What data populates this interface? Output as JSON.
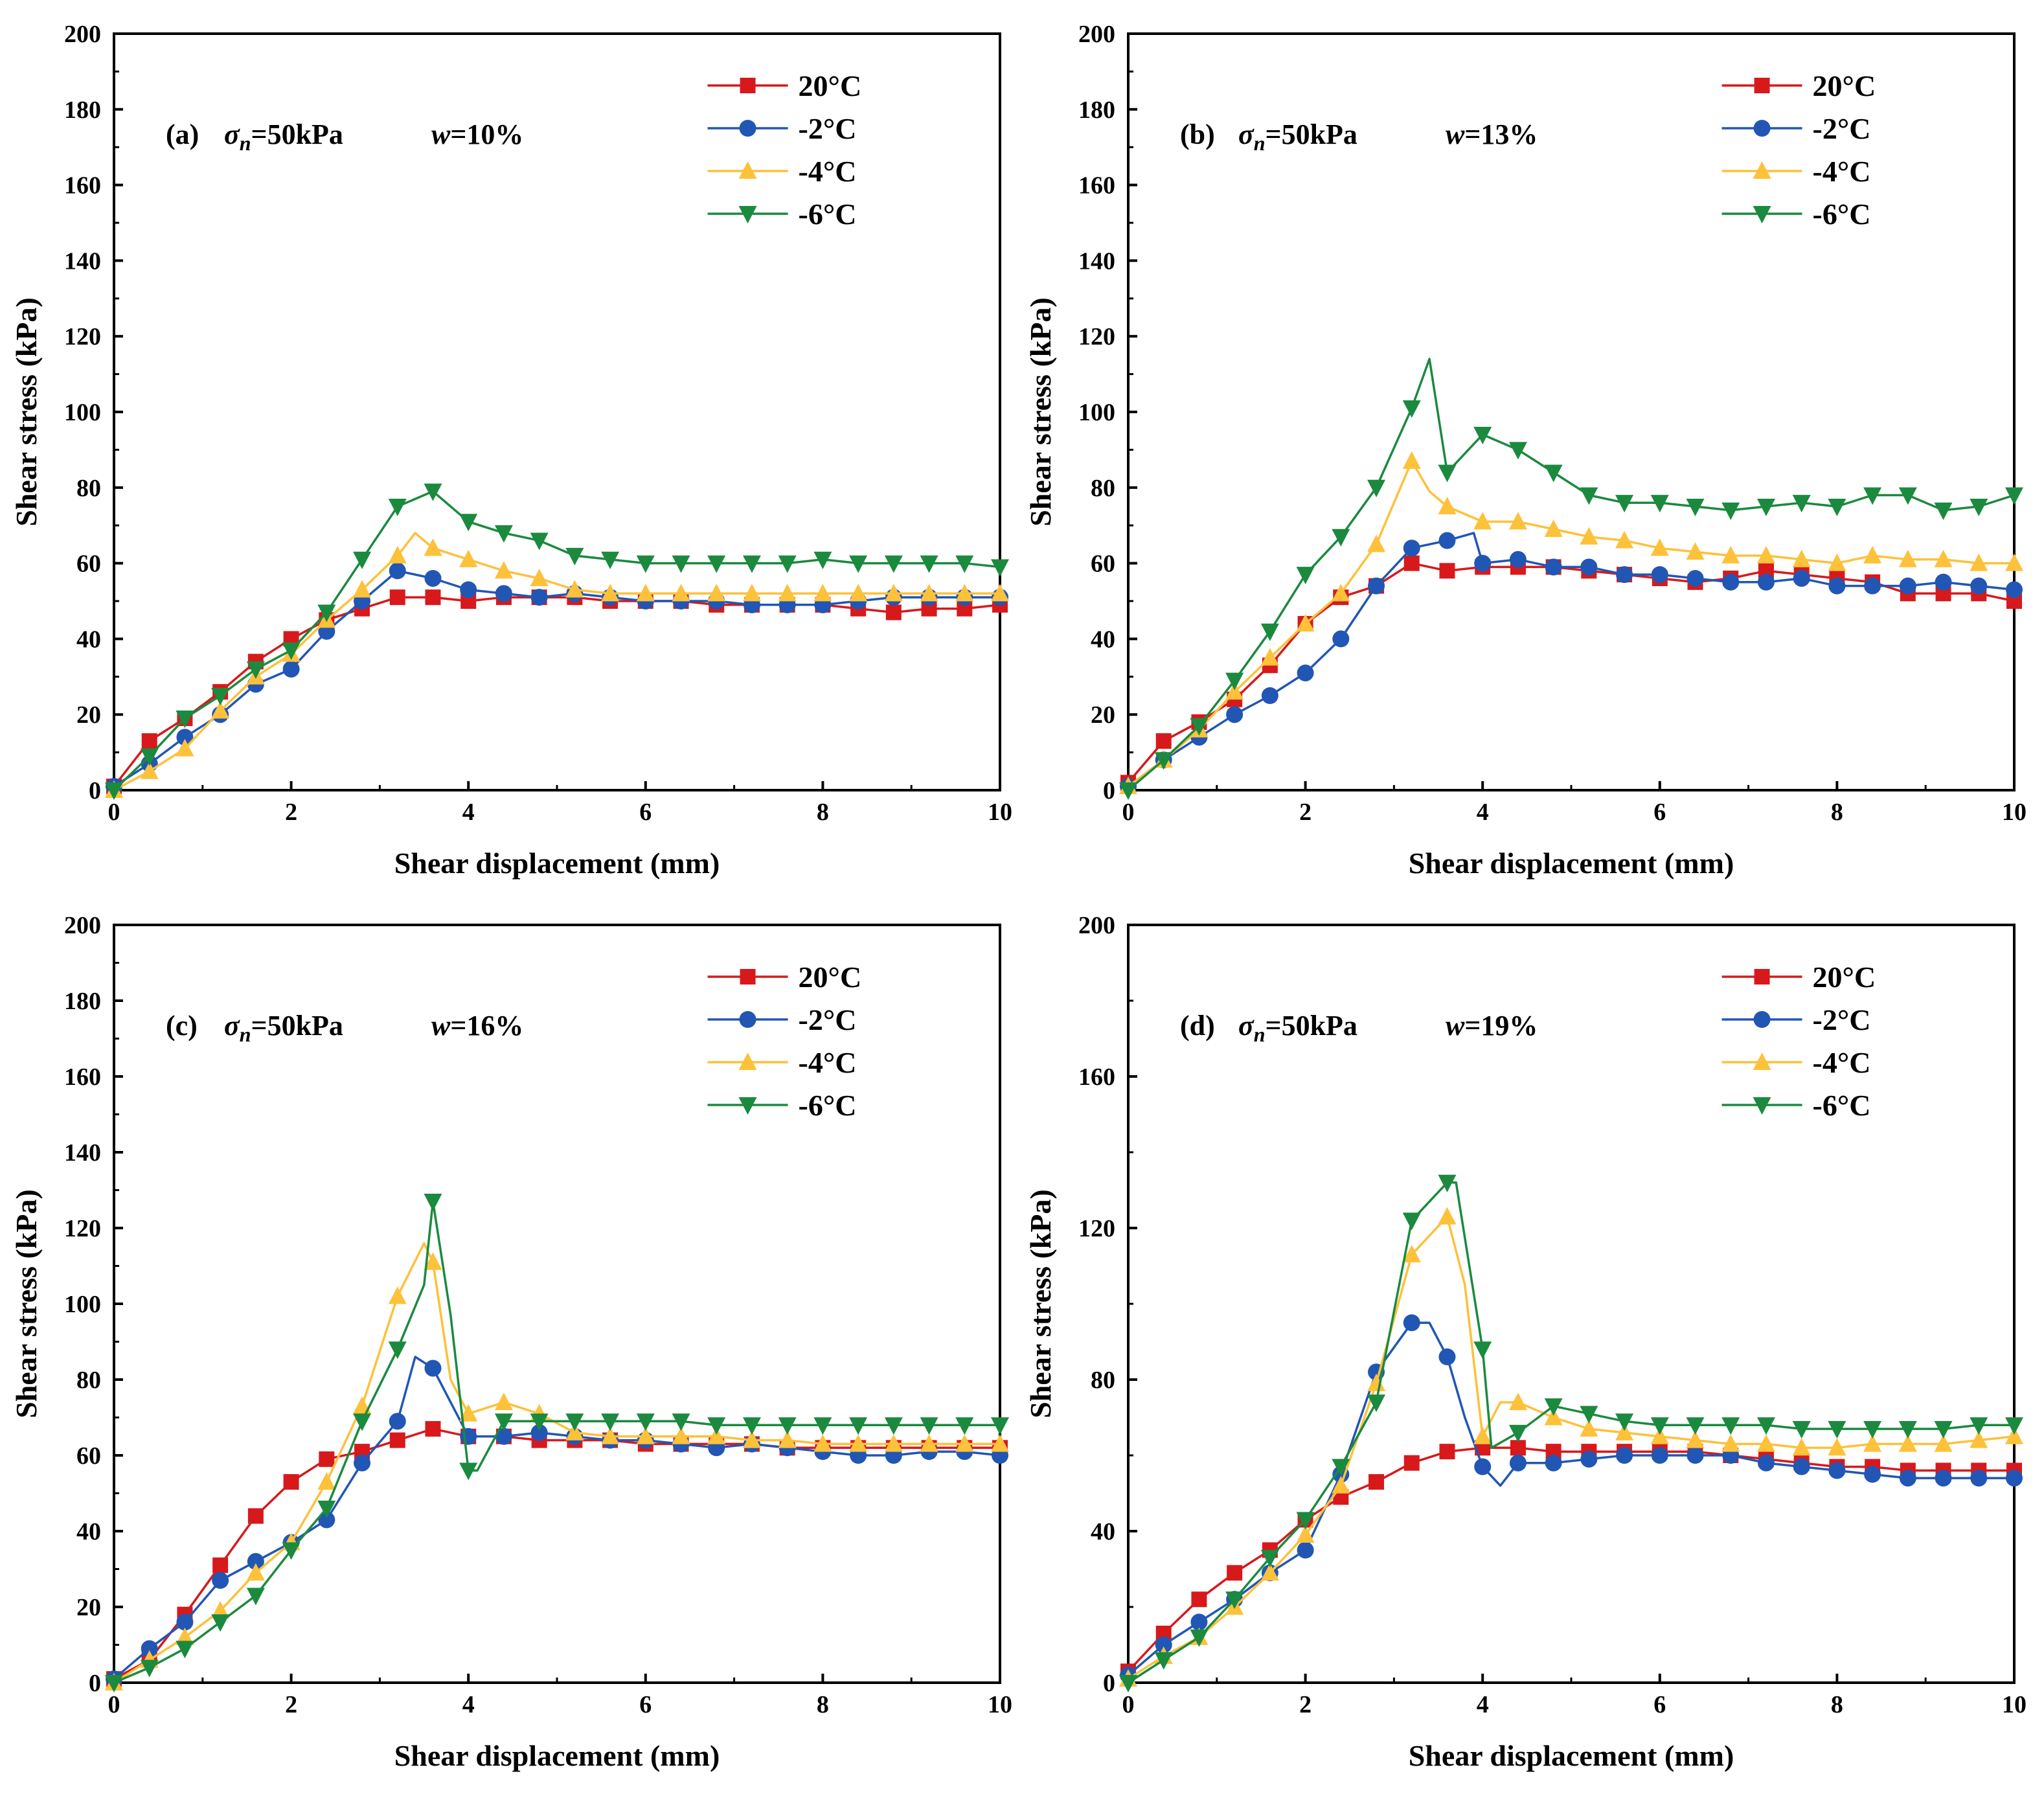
{
  "figure": {
    "panels": [
      {
        "label": "(a)",
        "sigma": "n",
        "sigma_rest": "=50kPa",
        "w_var": "w",
        "w_rest": "=10%"
      },
      {
        "label": "(b)",
        "sigma": "n",
        "sigma_rest": "=50kPa",
        "w_var": "w",
        "w_rest": "=13%"
      },
      {
        "label": "(c)",
        "sigma": "n",
        "sigma_rest": "=50kPa",
        "w_var": "w",
        "w_rest": "=16%"
      },
      {
        "label": "(d)",
        "sigma": "n",
        "sigma_rest": "=50kPa",
        "w_var": "w",
        "w_rest": "=19%"
      }
    ],
    "sigma_symbol": "σ"
  },
  "chart_data": [
    {
      "type": "line",
      "title": "(a) σn=50kPa w=10%",
      "xlabel": "Shear displacement (mm)",
      "ylabel": "Shear stress (kPa)",
      "xlim": [
        0,
        10
      ],
      "ylim": [
        0,
        200
      ],
      "xticks": [
        0,
        2,
        4,
        6,
        8,
        10
      ],
      "yticks": [
        0,
        20,
        40,
        60,
        80,
        100,
        120,
        140,
        160,
        180,
        200
      ],
      "legend": "top-right",
      "series": [
        {
          "name": "20°C",
          "color": "#d7191c",
          "marker": "square",
          "x": [
            0,
            0.4,
            0.8,
            1.2,
            1.6,
            2.0,
            2.4,
            2.8,
            3.2,
            3.6,
            4.0,
            4.4,
            4.8,
            5.2,
            5.6,
            6.0,
            6.4,
            6.8,
            7.2,
            7.6,
            8.0,
            8.4,
            8.8,
            9.2,
            9.6,
            10.0
          ],
          "y": [
            1,
            13,
            19,
            26,
            34,
            40,
            45,
            48,
            51,
            51,
            50,
            51,
            51,
            51,
            50,
            50,
            50,
            49,
            49,
            49,
            49,
            48,
            47,
            48,
            48,
            49
          ]
        },
        {
          "name": "-2°C",
          "color": "#2156b4",
          "marker": "circle",
          "x": [
            0,
            0.4,
            0.8,
            1.2,
            1.6,
            2.0,
            2.4,
            2.8,
            3.2,
            3.6,
            4.0,
            4.4,
            4.8,
            5.2,
            5.6,
            6.0,
            6.4,
            6.8,
            7.2,
            7.6,
            8.0,
            8.4,
            8.8,
            9.2,
            9.6,
            10.0
          ],
          "y": [
            1,
            7,
            14,
            20,
            28,
            32,
            42,
            50,
            58,
            56,
            53,
            52,
            51,
            52,
            51,
            50,
            50,
            50,
            49,
            49,
            49,
            50,
            51,
            51,
            51,
            51
          ]
        },
        {
          "name": "-4°C",
          "color": "#fdc13a",
          "marker": "triangle-up",
          "x": [
            0,
            0.4,
            0.8,
            1.2,
            1.6,
            2.0,
            2.4,
            2.8,
            3.2,
            3.4,
            3.6,
            4.0,
            4.4,
            4.8,
            5.2,
            5.6,
            6.0,
            6.4,
            6.8,
            7.2,
            7.6,
            8.0,
            8.4,
            8.8,
            9.2,
            9.6,
            10.0
          ],
          "y": [
            0,
            5,
            11,
            21,
            30,
            36,
            45,
            53,
            62,
            68,
            64,
            61,
            58,
            56,
            53,
            52,
            52,
            52,
            52,
            52,
            52,
            52,
            52,
            52,
            52,
            52,
            52
          ]
        },
        {
          "name": "-6°C",
          "color": "#1b8a3f",
          "marker": "triangle-down",
          "x": [
            0,
            0.4,
            0.8,
            1.2,
            1.6,
            2.0,
            2.4,
            2.8,
            3.2,
            3.6,
            4.0,
            4.4,
            4.8,
            5.2,
            5.6,
            6.0,
            6.4,
            6.8,
            7.2,
            7.6,
            8.0,
            8.4,
            8.8,
            9.2,
            9.6,
            10.0
          ],
          "y": [
            0,
            9,
            19,
            25,
            32,
            37,
            47,
            61,
            75,
            79,
            71,
            68,
            66,
            62,
            61,
            60,
            60,
            60,
            60,
            60,
            61,
            60,
            60,
            60,
            60,
            59
          ]
        }
      ]
    },
    {
      "type": "line",
      "title": "(b) σn=50kPa w=13%",
      "xlabel": "Shear displacement (mm)",
      "ylabel": "Shear stress (kPa)",
      "xlim": [
        0,
        10
      ],
      "ylim": [
        0,
        200
      ],
      "xticks": [
        0,
        2,
        4,
        6,
        8,
        10
      ],
      "yticks": [
        0,
        20,
        40,
        60,
        80,
        100,
        120,
        140,
        160,
        180,
        200
      ],
      "legend": "top-right",
      "series": [
        {
          "name": "20°C",
          "color": "#d7191c",
          "marker": "square",
          "x": [
            0,
            0.4,
            0.8,
            1.2,
            1.6,
            2.0,
            2.4,
            2.8,
            3.2,
            3.6,
            4.0,
            4.4,
            4.8,
            5.2,
            5.6,
            6.0,
            6.4,
            6.8,
            7.2,
            7.6,
            8.0,
            8.4,
            8.8,
            9.2,
            9.6,
            10.0
          ],
          "y": [
            2,
            13,
            18,
            24,
            33,
            44,
            51,
            54,
            60,
            58,
            59,
            59,
            59,
            58,
            57,
            56,
            55,
            56,
            58,
            57,
            56,
            55,
            52,
            52,
            52,
            50
          ]
        },
        {
          "name": "-2°C",
          "color": "#2156b4",
          "marker": "circle",
          "x": [
            0,
            0.4,
            0.8,
            1.2,
            1.6,
            2.0,
            2.4,
            2.8,
            3.2,
            3.6,
            3.9,
            4.0,
            4.4,
            4.8,
            5.2,
            5.6,
            6.0,
            6.4,
            6.8,
            7.2,
            7.6,
            8.0,
            8.4,
            8.8,
            9.2,
            9.6,
            10.0
          ],
          "y": [
            1,
            8,
            14,
            20,
            25,
            31,
            40,
            54,
            64,
            66,
            68,
            60,
            61,
            59,
            59,
            57,
            57,
            56,
            55,
            55,
            56,
            54,
            54,
            54,
            55,
            54,
            53
          ]
        },
        {
          "name": "-4°C",
          "color": "#fdc13a",
          "marker": "triangle-up",
          "x": [
            0,
            0.4,
            0.8,
            1.2,
            1.6,
            2.0,
            2.4,
            2.8,
            3.2,
            3.4,
            3.6,
            4.0,
            4.4,
            4.8,
            5.2,
            5.6,
            6.0,
            6.4,
            6.8,
            7.2,
            7.6,
            8.0,
            8.4,
            8.8,
            9.2,
            9.6,
            10.0
          ],
          "y": [
            1,
            8,
            16,
            26,
            35,
            44,
            52,
            65,
            87,
            79,
            75,
            71,
            71,
            69,
            67,
            66,
            64,
            63,
            62,
            62,
            61,
            60,
            62,
            61,
            61,
            60,
            60
          ]
        },
        {
          "name": "-6°C",
          "color": "#1b8a3f",
          "marker": "triangle-down",
          "x": [
            0,
            0.4,
            0.8,
            1.2,
            1.6,
            2.0,
            2.4,
            2.8,
            3.2,
            3.4,
            3.6,
            4.0,
            4.4,
            4.8,
            5.2,
            5.6,
            6.0,
            6.4,
            6.8,
            7.2,
            7.6,
            8.0,
            8.4,
            8.8,
            9.2,
            9.6,
            10.0
          ],
          "y": [
            0,
            8,
            17,
            29,
            42,
            57,
            67,
            80,
            101,
            114,
            84,
            94,
            90,
            84,
            78,
            76,
            76,
            75,
            74,
            75,
            76,
            75,
            78,
            78,
            74,
            75,
            78
          ]
        }
      ]
    },
    {
      "type": "line",
      "title": "(c) σn=50kPa w=16%",
      "xlabel": "Shear displacement (mm)",
      "ylabel": "Shear stress (kPa)",
      "xlim": [
        0,
        10
      ],
      "ylim": [
        0,
        200
      ],
      "xticks": [
        0,
        2,
        4,
        6,
        8,
        10
      ],
      "yticks": [
        0,
        20,
        40,
        60,
        80,
        100,
        120,
        140,
        160,
        180,
        200
      ],
      "legend": "top-right",
      "series": [
        {
          "name": "20°C",
          "color": "#d7191c",
          "marker": "square",
          "x": [
            0,
            0.4,
            0.8,
            1.2,
            1.6,
            2.0,
            2.4,
            2.8,
            3.2,
            3.6,
            4.0,
            4.4,
            4.8,
            5.2,
            5.6,
            6.0,
            6.4,
            6.8,
            7.2,
            7.6,
            8.0,
            8.4,
            8.8,
            9.2,
            9.6,
            10.0
          ],
          "y": [
            1,
            6,
            18,
            31,
            44,
            53,
            59,
            61,
            64,
            67,
            65,
            65,
            64,
            64,
            64,
            63,
            63,
            63,
            63,
            62,
            62,
            62,
            62,
            62,
            62,
            62
          ]
        },
        {
          "name": "-2°C",
          "color": "#2156b4",
          "marker": "circle",
          "x": [
            0,
            0.4,
            0.8,
            1.2,
            1.6,
            2.0,
            2.4,
            2.8,
            3.2,
            3.4,
            3.6,
            4.0,
            4.4,
            4.8,
            5.2,
            5.6,
            6.0,
            6.4,
            6.8,
            7.2,
            7.6,
            8.0,
            8.4,
            8.8,
            9.2,
            9.6,
            10.0
          ],
          "y": [
            1,
            9,
            16,
            27,
            32,
            37,
            43,
            58,
            69,
            86,
            83,
            65,
            65,
            66,
            65,
            64,
            64,
            63,
            62,
            63,
            62,
            61,
            60,
            60,
            61,
            61,
            60
          ]
        },
        {
          "name": "-4°C",
          "color": "#fdc13a",
          "marker": "triangle-up",
          "x": [
            0,
            0.4,
            0.8,
            1.2,
            1.6,
            2.0,
            2.4,
            2.8,
            3.2,
            3.5,
            3.6,
            3.8,
            4.0,
            4.4,
            4.8,
            5.2,
            5.6,
            6.0,
            6.4,
            6.8,
            7.2,
            7.6,
            8.0,
            8.4,
            8.8,
            9.2,
            9.6,
            10.0
          ],
          "y": [
            0,
            6,
            12,
            19,
            29,
            37,
            53,
            73,
            102,
            116,
            111,
            80,
            71,
            74,
            71,
            66,
            65,
            65,
            65,
            65,
            64,
            64,
            63,
            63,
            63,
            63,
            63,
            63
          ]
        },
        {
          "name": "-6°C",
          "color": "#1b8a3f",
          "marker": "triangle-down",
          "x": [
            0,
            0.4,
            0.8,
            1.2,
            1.6,
            2.0,
            2.4,
            2.8,
            3.2,
            3.5,
            3.6,
            3.8,
            4.0,
            4.1,
            4.4,
            4.8,
            5.2,
            5.6,
            6.0,
            6.4,
            6.8,
            7.2,
            7.6,
            8.0,
            8.4,
            8.8,
            9.2,
            9.6,
            10.0
          ],
          "y": [
            0,
            4,
            9,
            16,
            23,
            35,
            46,
            69,
            88,
            105,
            127,
            97,
            56,
            56,
            69,
            69,
            69,
            69,
            69,
            69,
            68,
            68,
            68,
            68,
            68,
            68,
            68,
            68,
            68
          ]
        }
      ]
    },
    {
      "type": "line",
      "title": "(d) σn=50kPa w=19%",
      "xlabel": "Shear displacement (mm)",
      "ylabel": "Shear stress (kPa)",
      "xlim": [
        0,
        10
      ],
      "ylim": [
        0,
        200
      ],
      "xticks": [
        0,
        2,
        4,
        6,
        8,
        10
      ],
      "yticks": [
        0,
        40,
        80,
        120,
        160,
        200
      ],
      "legend": "top-right",
      "series": [
        {
          "name": "20°C",
          "color": "#d7191c",
          "marker": "square",
          "x": [
            0,
            0.4,
            0.8,
            1.2,
            1.6,
            2.0,
            2.4,
            2.8,
            3.2,
            3.6,
            4.0,
            4.4,
            4.8,
            5.2,
            5.6,
            6.0,
            6.4,
            6.8,
            7.2,
            7.6,
            8.0,
            8.4,
            8.8,
            9.2,
            9.6,
            10.0
          ],
          "y": [
            3,
            13,
            22,
            29,
            35,
            43,
            49,
            53,
            58,
            61,
            62,
            62,
            61,
            61,
            61,
            61,
            61,
            60,
            59,
            58,
            57,
            57,
            56,
            56,
            56,
            56
          ]
        },
        {
          "name": "-2°C",
          "color": "#2156b4",
          "marker": "circle",
          "x": [
            0,
            0.4,
            0.8,
            1.2,
            1.6,
            2.0,
            2.4,
            2.8,
            3.2,
            3.4,
            3.6,
            3.8,
            4.0,
            4.2,
            4.4,
            4.8,
            5.2,
            5.6,
            6.0,
            6.4,
            6.8,
            7.2,
            7.6,
            8.0,
            8.4,
            8.8,
            9.2,
            9.6,
            10.0
          ],
          "y": [
            2,
            10,
            16,
            22,
            29,
            35,
            55,
            82,
            95,
            95,
            86,
            70,
            57,
            52,
            58,
            58,
            59,
            60,
            60,
            60,
            60,
            58,
            57,
            56,
            55,
            54,
            54,
            54,
            54
          ]
        },
        {
          "name": "-4°C",
          "color": "#fdc13a",
          "marker": "triangle-up",
          "x": [
            0,
            0.4,
            0.8,
            1.2,
            1.6,
            2.0,
            2.4,
            2.8,
            3.2,
            3.6,
            3.8,
            4.0,
            4.2,
            4.4,
            4.8,
            5.2,
            5.6,
            6.0,
            6.4,
            6.8,
            7.2,
            7.6,
            8.0,
            8.4,
            8.8,
            9.2,
            9.6,
            10.0
          ],
          "y": [
            1,
            7,
            12,
            20,
            29,
            39,
            52,
            79,
            113,
            123,
            105,
            65,
            74,
            74,
            70,
            67,
            66,
            65,
            64,
            63,
            63,
            62,
            62,
            63,
            63,
            63,
            64,
            65
          ]
        },
        {
          "name": "-6°C",
          "color": "#1b8a3f",
          "marker": "triangle-down",
          "x": [
            0,
            0.4,
            0.8,
            1.2,
            1.6,
            2.0,
            2.4,
            2.8,
            3.2,
            3.6,
            3.7,
            4.0,
            4.1,
            4.4,
            4.8,
            5.2,
            5.6,
            6.0,
            6.4,
            6.8,
            7.2,
            7.6,
            8.0,
            8.4,
            8.8,
            9.2,
            9.6,
            10.0
          ],
          "y": [
            0,
            6,
            12,
            22,
            33,
            43,
            57,
            74,
            122,
            132,
            132,
            88,
            62,
            66,
            73,
            71,
            69,
            68,
            68,
            68,
            68,
            67,
            67,
            67,
            67,
            67,
            68,
            68
          ]
        }
      ]
    }
  ]
}
